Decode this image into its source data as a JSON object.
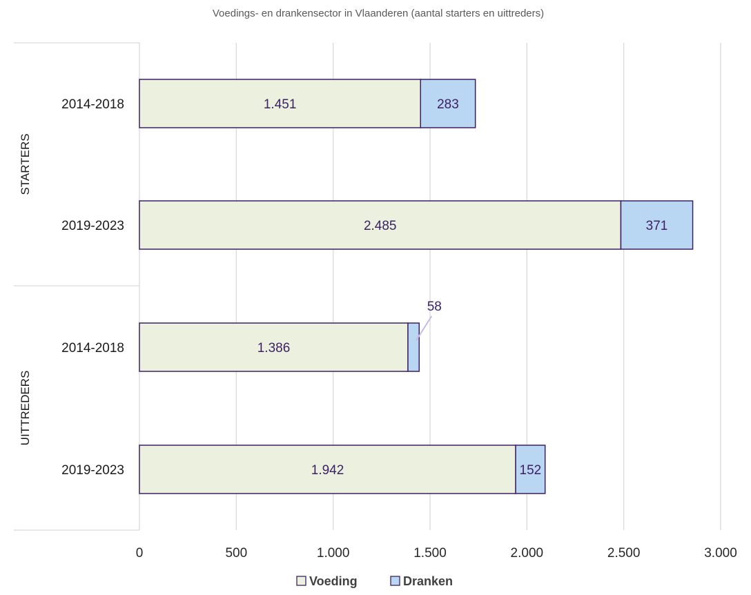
{
  "chart_data": {
    "type": "bar",
    "orientation": "horizontal",
    "stacked": true,
    "title": "Voedings- en drankensector in Vlaanderen (aantal starters en uittreders)",
    "xlabel": "",
    "ylabel": "",
    "xlim": [
      0,
      3000
    ],
    "x_ticks": [
      0,
      500,
      1000,
      1500,
      2000,
      2500,
      3000
    ],
    "x_tick_labels": [
      "0",
      "500",
      "1.000",
      "1.500",
      "2.000",
      "2.500",
      "3.000"
    ],
    "grid": true,
    "legend_position": "bottom",
    "groups": [
      {
        "label": "STARTERS",
        "categories": [
          "2014-2018",
          "2019-2023"
        ]
      },
      {
        "label": "UITTREDERS",
        "categories": [
          "2014-2018",
          "2019-2023"
        ]
      }
    ],
    "categories": [
      "2014-2018",
      "2019-2023",
      "2014-2018",
      "2019-2023"
    ],
    "series": [
      {
        "name": "Voeding",
        "color": "#ebf1de",
        "values": [
          1451,
          2485,
          1386,
          1942
        ],
        "value_labels": [
          "1.451",
          "2.485",
          "1.386",
          "1.942"
        ]
      },
      {
        "name": "Dranken",
        "color": "#b9d6f2",
        "values": [
          283,
          371,
          58,
          152
        ],
        "value_labels": [
          "283",
          "371",
          "58",
          "152"
        ]
      }
    ],
    "outline_color": "#3c1f63"
  }
}
